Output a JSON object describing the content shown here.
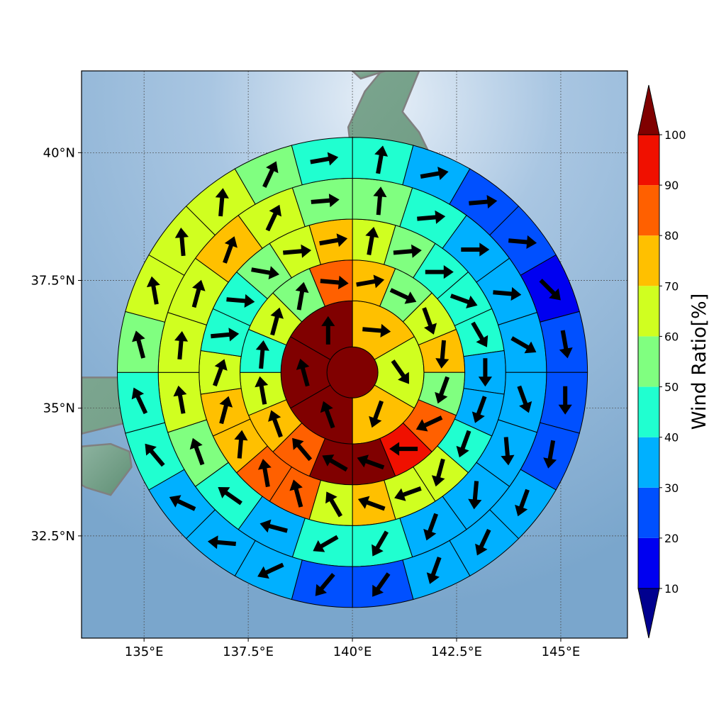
{
  "map": {
    "extent": {
      "lon": [
        133.5,
        146.6
      ],
      "lat": [
        30.5,
        41.6
      ]
    },
    "center": {
      "lon": 140.0,
      "lat": 35.7
    },
    "lon_ticks": [
      135,
      137.5,
      140,
      142.5,
      145
    ],
    "lon_tick_labels": [
      "135°E",
      "137.5°E",
      "140°E",
      "142.5°E",
      "145°E"
    ],
    "lat_ticks": [
      32.5,
      35,
      37.5,
      40
    ],
    "lat_tick_labels": [
      "32.5°N",
      "35°N",
      "37.5°N",
      "40°N"
    ],
    "gridlines": true,
    "coastline_color": "#808080",
    "ocean_color": "#8fb3d3",
    "land_color": "#6f9f86"
  },
  "chart_data": {
    "type": "heatmap",
    "variable": "wind ratio (%)",
    "ring_edges_deg_lat": [
      0,
      0.5,
      1.4,
      2.2,
      3.0,
      3.8,
      4.6
    ],
    "rings": [
      {
        "values": [
          100
        ],
        "dirs": [
          0
        ]
      },
      {
        "values": [
          70,
          60,
          70,
          100,
          100,
          100
        ],
        "dirs": [
          95,
          145,
          200,
          340,
          345,
          0
        ]
      },
      {
        "values": [
          70,
          50,
          60,
          70,
          50,
          80,
          90,
          100,
          100,
          80,
          70,
          60,
          40,
          60,
          50,
          80
        ],
        "dirs": [
          80,
          115,
          160,
          185,
          200,
          245,
          270,
          290,
          300,
          320,
          340,
          350,
          5,
          15,
          10,
          95
        ]
      },
      {
        "values": [
          60,
          50,
          40,
          40,
          40,
          30,
          30,
          40,
          60,
          60,
          70,
          60,
          80,
          80,
          70,
          70,
          60,
          40,
          40,
          50,
          60,
          70
        ],
        "dirs": [
          10,
          85,
          90,
          110,
          150,
          180,
          200,
          200,
          195,
          250,
          290,
          330,
          345,
          350,
          5,
          15,
          20,
          85,
          95,
          100,
          85,
          80
        ]
      },
      {
        "values": [
          50,
          40,
          30,
          30,
          30,
          30,
          30,
          30,
          30,
          40,
          40,
          30,
          40,
          50,
          60,
          60,
          60,
          70,
          60,
          50
        ],
        "dirs": [
          5,
          85,
          90,
          95,
          120,
          160,
          175,
          185,
          200,
          210,
          240,
          285,
          305,
          340,
          350,
          5,
          15,
          20,
          25,
          85
        ]
      },
      {
        "values": [
          40,
          30,
          20,
          20,
          10,
          20,
          20,
          20,
          30,
          30,
          30,
          20,
          20,
          30,
          30,
          30,
          40,
          40,
          50,
          60,
          60,
          60,
          50,
          40
        ],
        "dirs": [
          10,
          80,
          85,
          95,
          135,
          170,
          180,
          190,
          200,
          205,
          200,
          215,
          220,
          245,
          275,
          295,
          320,
          335,
          345,
          350,
          355,
          5,
          25,
          80
        ]
      }
    ],
    "colorbar": {
      "label": "Wind Ratio[%]",
      "ticks": [
        10,
        20,
        30,
        40,
        50,
        60,
        70,
        80,
        90,
        100
      ],
      "tick_labels": [
        "10",
        "20",
        "30",
        "40",
        "50",
        "60",
        "70",
        "80",
        "90",
        "100"
      ],
      "bin_colors": [
        "#00008f",
        "#0000f0",
        "#0050ff",
        "#00b0ff",
        "#20ffd0",
        "#80ff80",
        "#d0ff20",
        "#ffc000",
        "#ff6000",
        "#f01000",
        "#800000"
      ],
      "extend": "both"
    }
  }
}
